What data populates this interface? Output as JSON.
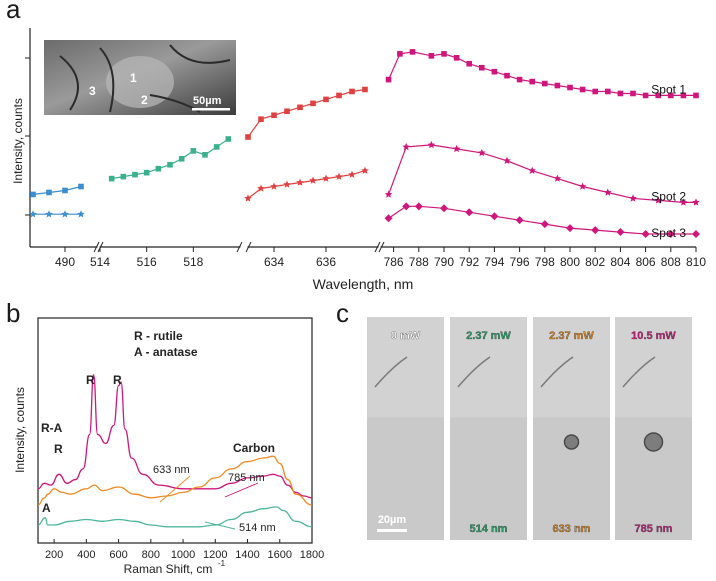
{
  "panels": {
    "a": "a",
    "b": "b",
    "c": "c"
  },
  "colors": {
    "blue": "#3b8ed0",
    "green": "#3bb08f",
    "red": "#e0403f",
    "magenta": "#d0167c",
    "orange": "#f08a24",
    "teal": "#4fb69c",
    "axis": "#222222"
  },
  "chart_data": [
    {
      "type": "line",
      "panel": "a",
      "xlabel": "Wavelength, nm",
      "ylabel": "Intensity, counts",
      "broken_x_axis": true,
      "segments": [
        {
          "xlim": [
            488,
            492
          ],
          "ticks": [
            490
          ]
        },
        {
          "xlim": [
            514,
            520
          ],
          "ticks": [
            514,
            516,
            518
          ]
        },
        {
          "xlim": [
            633,
            638
          ],
          "ticks": [
            634,
            636
          ]
        },
        {
          "xlim": [
            785,
            810
          ],
          "ticks": [
            786,
            788,
            790,
            792,
            794,
            796,
            798,
            800,
            802,
            804,
            806,
            808,
            810
          ]
        }
      ],
      "y_relative_range": [
        0,
        1
      ],
      "series": [
        {
          "name": "Spot 1",
          "color": "magenta",
          "marker": "square",
          "segment": 3,
          "x": [
            785.6,
            786.5,
            787.5,
            789,
            790,
            791,
            792,
            793,
            794,
            795,
            796,
            797,
            798,
            799,
            800,
            801,
            802,
            803,
            804,
            805,
            806,
            807,
            808,
            809,
            810
          ],
          "y": [
            0.8,
            0.93,
            0.94,
            0.92,
            0.93,
            0.91,
            0.88,
            0.86,
            0.84,
            0.82,
            0.8,
            0.79,
            0.78,
            0.77,
            0.76,
            0.75,
            0.74,
            0.74,
            0.73,
            0.73,
            0.72,
            0.72,
            0.72,
            0.72,
            0.72
          ]
        },
        {
          "name": "",
          "color": "red",
          "marker": "square",
          "segment": 2,
          "x": [
            633,
            633.5,
            634,
            634.5,
            635,
            635.5,
            636,
            636.5,
            637,
            637.5
          ],
          "y": [
            0.51,
            0.6,
            0.62,
            0.64,
            0.66,
            0.68,
            0.7,
            0.72,
            0.74,
            0.75
          ]
        },
        {
          "name": "",
          "color": "red",
          "marker": "star",
          "segment": 2,
          "x": [
            633,
            633.5,
            634,
            634.5,
            635,
            635.5,
            636,
            636.5,
            637,
            637.5
          ],
          "y": [
            0.2,
            0.25,
            0.26,
            0.27,
            0.28,
            0.29,
            0.3,
            0.31,
            0.32,
            0.34
          ]
        },
        {
          "name": "",
          "color": "green",
          "marker": "square",
          "segment": 1,
          "x": [
            514.5,
            515,
            515.5,
            516,
            516.5,
            517,
            517.5,
            518,
            518.5,
            519,
            519.5
          ],
          "y": [
            0.3,
            0.31,
            0.32,
            0.33,
            0.35,
            0.37,
            0.4,
            0.44,
            0.42,
            0.46,
            0.5
          ]
        },
        {
          "name": "",
          "color": "blue",
          "marker": "square",
          "segment": 0,
          "x": [
            488,
            489,
            490,
            491
          ],
          "y": [
            0.22,
            0.23,
            0.24,
            0.26
          ]
        },
        {
          "name": "",
          "color": "blue",
          "marker": "star",
          "segment": 0,
          "x": [
            488,
            489,
            490,
            491
          ],
          "y": [
            0.12,
            0.12,
            0.12,
            0.12
          ]
        },
        {
          "name": "Spot 2",
          "color": "magenta",
          "marker": "star",
          "segment": 3,
          "x": [
            785.6,
            787,
            789,
            791,
            793,
            795,
            797,
            799,
            801,
            803,
            805,
            807,
            809,
            810
          ],
          "y": [
            0.22,
            0.46,
            0.47,
            0.45,
            0.43,
            0.39,
            0.34,
            0.3,
            0.26,
            0.23,
            0.2,
            0.19,
            0.18,
            0.18
          ]
        },
        {
          "name": "Spot 3",
          "color": "magenta",
          "marker": "diamond",
          "segment": 3,
          "x": [
            785.6,
            787,
            788,
            790,
            792,
            794,
            796,
            798,
            800,
            802,
            804,
            806,
            808,
            810
          ],
          "y": [
            0.1,
            0.16,
            0.16,
            0.15,
            0.13,
            0.11,
            0.09,
            0.07,
            0.05,
            0.04,
            0.03,
            0.02,
            0.02,
            0.02
          ]
        }
      ],
      "inset_photo_labels": [
        "1",
        "2",
        "3"
      ],
      "inset_scale_label": "50µm"
    },
    {
      "type": "line",
      "panel": "b",
      "xlabel": "Raman Shift, cm",
      "xlabel_superscript": "-1",
      "ylabel": "Intensity, counts",
      "xlim": [
        100,
        1800
      ],
      "xticks": [
        200,
        400,
        600,
        800,
        1000,
        1200,
        1400,
        1600,
        1800
      ],
      "legend_lines": [
        "R - rutile",
        "A - anatase"
      ],
      "annotations": [
        "R-A",
        "R",
        "R",
        "R",
        "A",
        "Carbon"
      ],
      "series": [
        {
          "name": "785 nm",
          "color": "magenta",
          "x": [
            100,
            140,
            180,
            230,
            280,
            330,
            380,
            420,
            445,
            470,
            520,
            570,
            600,
            615,
            640,
            680,
            750,
            850,
            1000,
            1200,
            1300,
            1400,
            1500,
            1560,
            1600,
            1650,
            1700,
            1750,
            1800
          ],
          "y": [
            0.25,
            0.28,
            0.27,
            0.33,
            0.28,
            0.3,
            0.36,
            0.55,
            0.88,
            0.55,
            0.5,
            0.6,
            0.82,
            0.84,
            0.58,
            0.42,
            0.33,
            0.27,
            0.25,
            0.25,
            0.28,
            0.31,
            0.32,
            0.33,
            0.32,
            0.27,
            0.23,
            0.21,
            0.2
          ]
        },
        {
          "name": "633 nm",
          "color": "orange",
          "x": [
            100,
            140,
            160,
            200,
            250,
            300,
            400,
            450,
            500,
            600,
            700,
            800,
            900,
            1000,
            1100,
            1200,
            1300,
            1400,
            1500,
            1560,
            1600,
            1650,
            1700,
            1800
          ],
          "y": [
            0.16,
            0.2,
            0.22,
            0.25,
            0.23,
            0.22,
            0.25,
            0.27,
            0.24,
            0.26,
            0.22,
            0.2,
            0.21,
            0.23,
            0.26,
            0.31,
            0.36,
            0.4,
            0.42,
            0.43,
            0.39,
            0.3,
            0.22,
            0.16
          ]
        },
        {
          "name": "514 nm",
          "color": "teal",
          "x": [
            100,
            145,
            160,
            200,
            300,
            400,
            500,
            600,
            700,
            800,
            900,
            1000,
            1100,
            1200,
            1300,
            1400,
            1500,
            1580,
            1620,
            1700,
            1800
          ],
          "y": [
            0.05,
            0.09,
            0.05,
            0.05,
            0.07,
            0.08,
            0.07,
            0.08,
            0.07,
            0.05,
            0.04,
            0.04,
            0.04,
            0.05,
            0.08,
            0.12,
            0.14,
            0.15,
            0.13,
            0.07,
            0.04
          ]
        }
      ]
    }
  ],
  "micrographs": [
    {
      "power": "0 mW",
      "wavelength": "",
      "color": "#ffffff"
    },
    {
      "power": "2.37 mW",
      "wavelength": "514 nm",
      "color": "#2e9d68"
    },
    {
      "power": "2.37 mW",
      "wavelength": "633 nm",
      "color": "#d9841c"
    },
    {
      "power": "10.5 mW",
      "wavelength": "785 nm",
      "color": "#c01f7a"
    }
  ],
  "micrograph_scale_label": "20µm"
}
